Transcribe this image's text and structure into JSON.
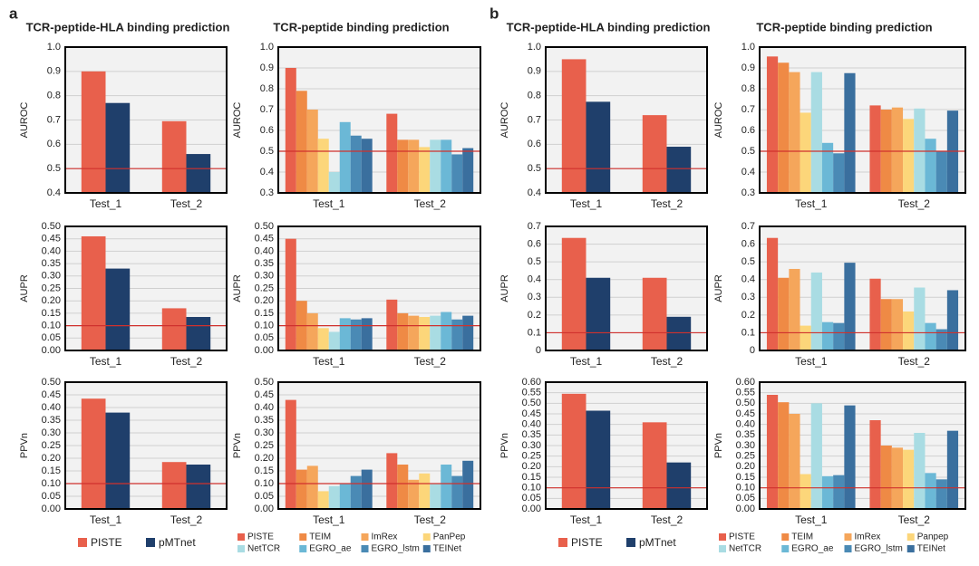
{
  "panel_labels": [
    "a",
    "b"
  ],
  "chart_data": [
    {
      "type": "bar",
      "title": "TCR-peptide-HLA binding prediction",
      "ylabel": "AUROC",
      "categories": [
        "Test_1",
        "Test_2"
      ],
      "series": [
        {
          "name": "PISTE",
          "color": "#e8604c",
          "values": [
            0.9,
            0.695
          ]
        },
        {
          "name": "pMTnet",
          "color": "#1f3f6b",
          "values": [
            0.77,
            0.56
          ]
        }
      ],
      "ylim": [
        0.4,
        1
      ],
      "yticks": [
        0.4,
        0.5,
        0.6,
        0.7,
        0.8,
        0.9,
        {
          "value": 1,
          "label": "1.0"
        }
      ],
      "threshold": 0.5,
      "threshold_color": "#d0312d",
      "legend": false
    },
    {
      "type": "bar",
      "title": "TCR-peptide binding prediction",
      "ylabel": "AUROC",
      "categories": [
        "Test_1",
        "Test_2"
      ],
      "series": [
        {
          "name": "PISTE",
          "color": "#e8604c",
          "values": [
            0.9,
            0.68
          ]
        },
        {
          "name": "TEIM",
          "color": "#ef8a45",
          "values": [
            0.79,
            0.555
          ]
        },
        {
          "name": "ImRex",
          "color": "#f5a65b",
          "values": [
            0.7,
            0.555
          ]
        },
        {
          "name": "PanPep",
          "color": "#fcd67a",
          "values": [
            0.56,
            0.52
          ]
        },
        {
          "name": "NetTCR",
          "color": "#a9dce3",
          "values": [
            0.4,
            0.555
          ]
        },
        {
          "name": "EGRO_ae",
          "color": "#6bb8d6",
          "values": [
            0.64,
            0.555
          ]
        },
        {
          "name": "EGRO_lstm",
          "color": "#4a8ab5",
          "values": [
            0.575,
            0.485
          ]
        },
        {
          "name": "TEINet",
          "color": "#3a6f9e",
          "values": [
            0.56,
            0.515
          ]
        }
      ],
      "ylim": [
        0.3,
        1
      ],
      "yticks": [
        0.3,
        0.4,
        0.5,
        0.6,
        0.7,
        0.8,
        0.9,
        {
          "value": 1,
          "label": "1.0"
        }
      ],
      "threshold": 0.5,
      "threshold_color": "#d0312d",
      "legend": false
    },
    {
      "type": "bar",
      "title": "TCR-peptide-HLA binding prediction",
      "ylabel": "AUROC",
      "categories": [
        "Test_1",
        "Test_2"
      ],
      "series": [
        {
          "name": "PISTE",
          "color": "#e8604c",
          "values": [
            0.95,
            0.72
          ]
        },
        {
          "name": "pMTnet",
          "color": "#1f3f6b",
          "values": [
            0.775,
            0.59
          ]
        }
      ],
      "ylim": [
        0.4,
        1
      ],
      "yticks": [
        0.4,
        0.5,
        0.6,
        0.7,
        0.8,
        0.9,
        {
          "value": 1,
          "label": "1.0"
        }
      ],
      "threshold": 0.5,
      "threshold_color": "#d0312d",
      "legend": false
    },
    {
      "type": "bar",
      "title": "TCR-peptide binding prediction",
      "ylabel": "AUROC",
      "categories": [
        "Test_1",
        "Test_2"
      ],
      "series": [
        {
          "name": "PISTE",
          "color": "#e8604c",
          "values": [
            0.955,
            0.72
          ]
        },
        {
          "name": "TEIM",
          "color": "#ef8a45",
          "values": [
            0.925,
            0.7
          ]
        },
        {
          "name": "ImRex",
          "color": "#f5a65b",
          "values": [
            0.88,
            0.71
          ]
        },
        {
          "name": "Panpep",
          "color": "#fcd67a",
          "values": [
            0.685,
            0.655
          ]
        },
        {
          "name": "NetTCR",
          "color": "#a9dce3",
          "values": [
            0.88,
            0.705
          ]
        },
        {
          "name": "EGRO_ae",
          "color": "#6bb8d6",
          "values": [
            0.54,
            0.56
          ]
        },
        {
          "name": "EGRO_lstm",
          "color": "#4a8ab5",
          "values": [
            0.49,
            0.5
          ]
        },
        {
          "name": "TEINet",
          "color": "#3a6f9e",
          "values": [
            0.875,
            0.695
          ]
        }
      ],
      "ylim": [
        0.3,
        1
      ],
      "yticks": [
        0.3,
        0.4,
        0.5,
        0.6,
        0.7,
        0.8,
        0.9,
        {
          "value": 1,
          "label": "1.0"
        }
      ],
      "threshold": 0.5,
      "threshold_color": "#d0312d",
      "legend": false
    },
    {
      "type": "bar",
      "ylabel": "AUPR",
      "categories": [
        "Test_1",
        "Test_2"
      ],
      "series": [
        {
          "name": "PISTE",
          "color": "#e8604c",
          "values": [
            0.46,
            0.17
          ]
        },
        {
          "name": "pMTnet",
          "color": "#1f3f6b",
          "values": [
            0.33,
            0.135
          ]
        }
      ],
      "ylim": [
        0,
        0.5
      ],
      "yticks": [
        {
          "value": 0,
          "label": "0.00"
        },
        0.05,
        {
          "value": 0.1,
          "label": "0.10"
        },
        0.15,
        {
          "value": 0.2,
          "label": "0.20"
        },
        0.25,
        {
          "value": 0.3,
          "label": "0.30"
        },
        0.35,
        {
          "value": 0.4,
          "label": "0.40"
        },
        0.45,
        {
          "value": 0.5,
          "label": "0.50"
        }
      ],
      "threshold": 0.1,
      "threshold_color": "#d0312d",
      "legend": false
    },
    {
      "type": "bar",
      "ylabel": "AUPR",
      "categories": [
        "Test_1",
        "Test_2"
      ],
      "series": [
        {
          "name": "PISTE",
          "color": "#e8604c",
          "values": [
            0.45,
            0.205
          ]
        },
        {
          "name": "TEIM",
          "color": "#ef8a45",
          "values": [
            0.2,
            0.15
          ]
        },
        {
          "name": "ImRex",
          "color": "#f5a65b",
          "values": [
            0.15,
            0.14
          ]
        },
        {
          "name": "PanPep",
          "color": "#fcd67a",
          "values": [
            0.09,
            0.135
          ]
        },
        {
          "name": "NetTCR",
          "color": "#a9dce3",
          "values": [
            0.075,
            0.14
          ]
        },
        {
          "name": "EGRO_ae",
          "color": "#6bb8d6",
          "values": [
            0.13,
            0.155
          ]
        },
        {
          "name": "EGRO_lstm",
          "color": "#4a8ab5",
          "values": [
            0.125,
            0.125
          ]
        },
        {
          "name": "TEINet",
          "color": "#3a6f9e",
          "values": [
            0.13,
            0.14
          ]
        }
      ],
      "ylim": [
        0,
        0.5
      ],
      "yticks": [
        {
          "value": 0,
          "label": "0.00"
        },
        0.05,
        {
          "value": 0.1,
          "label": "0.10"
        },
        0.15,
        {
          "value": 0.2,
          "label": "0.20"
        },
        0.25,
        {
          "value": 0.3,
          "label": "0.30"
        },
        0.35,
        {
          "value": 0.4,
          "label": "0.40"
        },
        0.45,
        {
          "value": 0.5,
          "label": "0.50"
        }
      ],
      "threshold": 0.1,
      "threshold_color": "#d0312d",
      "legend": false
    },
    {
      "type": "bar",
      "ylabel": "AUPR",
      "categories": [
        "Test_1",
        "Test_2"
      ],
      "series": [
        {
          "name": "PISTE",
          "color": "#e8604c",
          "values": [
            0.635,
            0.41
          ]
        },
        {
          "name": "pMTnet",
          "color": "#1f3f6b",
          "values": [
            0.41,
            0.19
          ]
        }
      ],
      "ylim": [
        0,
        0.7
      ],
      "yticks": [
        {
          "value": 0,
          "label": "0"
        },
        0.1,
        0.2,
        0.3,
        0.4,
        0.5,
        0.6,
        0.7
      ],
      "threshold": 0.1,
      "threshold_color": "#d0312d",
      "legend": false
    },
    {
      "type": "bar",
      "ylabel": "AUPR",
      "categories": [
        "Test_1",
        "Test_2"
      ],
      "series": [
        {
          "name": "PISTE",
          "color": "#e8604c",
          "values": [
            0.635,
            0.405
          ]
        },
        {
          "name": "TEIM",
          "color": "#ef8a45",
          "values": [
            0.41,
            0.29
          ]
        },
        {
          "name": "ImRex",
          "color": "#f5a65b",
          "values": [
            0.46,
            0.29
          ]
        },
        {
          "name": "Panpep",
          "color": "#fcd67a",
          "values": [
            0.14,
            0.22
          ]
        },
        {
          "name": "NetTCR",
          "color": "#a9dce3",
          "values": [
            0.44,
            0.355
          ]
        },
        {
          "name": "EGRO_ae",
          "color": "#6bb8d6",
          "values": [
            0.16,
            0.155
          ]
        },
        {
          "name": "EGRO_lstm",
          "color": "#4a8ab5",
          "values": [
            0.155,
            0.12
          ]
        },
        {
          "name": "TEINet",
          "color": "#3a6f9e",
          "values": [
            0.495,
            0.34
          ]
        }
      ],
      "ylim": [
        0,
        0.7
      ],
      "yticks": [
        {
          "value": 0,
          "label": "0"
        },
        0.1,
        0.2,
        0.3,
        0.4,
        0.5,
        0.6,
        0.7
      ],
      "threshold": 0.1,
      "threshold_color": "#d0312d",
      "legend": false
    },
    {
      "type": "bar",
      "ylabel": "PPVn",
      "categories": [
        "Test_1",
        "Test_2"
      ],
      "series": [
        {
          "name": "PISTE",
          "color": "#e8604c",
          "values": [
            0.435,
            0.185
          ]
        },
        {
          "name": "pMTnet",
          "color": "#1f3f6b",
          "values": [
            0.38,
            0.175
          ]
        }
      ],
      "ylim": [
        0,
        0.5
      ],
      "yticks": [
        {
          "value": 0,
          "label": "0.00"
        },
        0.05,
        {
          "value": 0.1,
          "label": "0.10"
        },
        0.15,
        {
          "value": 0.2,
          "label": "0.20"
        },
        0.25,
        {
          "value": 0.3,
          "label": "0.30"
        },
        0.35,
        {
          "value": 0.4,
          "label": "0.40"
        },
        0.45,
        {
          "value": 0.5,
          "label": "0.50"
        }
      ],
      "threshold": 0.1,
      "threshold_color": "#d0312d",
      "legend": true
    },
    {
      "type": "bar",
      "ylabel": "PPVn",
      "categories": [
        "Test_1",
        "Test_2"
      ],
      "series": [
        {
          "name": "PISTE",
          "color": "#e8604c",
          "values": [
            0.43,
            0.22
          ]
        },
        {
          "name": "TEIM",
          "color": "#ef8a45",
          "values": [
            0.155,
            0.175
          ]
        },
        {
          "name": "ImRex",
          "color": "#f5a65b",
          "values": [
            0.17,
            0.115
          ]
        },
        {
          "name": "PanPep",
          "color": "#fcd67a",
          "values": [
            0.07,
            0.14
          ]
        },
        {
          "name": "NetTCR",
          "color": "#a9dce3",
          "values": [
            0.09,
            0.1
          ]
        },
        {
          "name": "EGRO_ae",
          "color": "#6bb8d6",
          "values": [
            0.1,
            0.175
          ]
        },
        {
          "name": "EGRO_lstm",
          "color": "#4a8ab5",
          "values": [
            0.13,
            0.13
          ]
        },
        {
          "name": "TEINet",
          "color": "#3a6f9e",
          "values": [
            0.155,
            0.19
          ]
        }
      ],
      "ylim": [
        0,
        0.5
      ],
      "yticks": [
        {
          "value": 0,
          "label": "0.00"
        },
        0.05,
        {
          "value": 0.1,
          "label": "0.10"
        },
        0.15,
        {
          "value": 0.2,
          "label": "0.20"
        },
        0.25,
        {
          "value": 0.3,
          "label": "0.30"
        },
        0.35,
        {
          "value": 0.4,
          "label": "0.40"
        },
        0.45,
        {
          "value": 0.5,
          "label": "0.50"
        }
      ],
      "threshold": 0.1,
      "threshold_color": "#d0312d",
      "legend": true
    },
    {
      "type": "bar",
      "ylabel": "PPVn",
      "categories": [
        "Test_1",
        "Test_2"
      ],
      "series": [
        {
          "name": "PISTE",
          "color": "#e8604c",
          "values": [
            0.545,
            0.41
          ]
        },
        {
          "name": "pMTnet",
          "color": "#1f3f6b",
          "values": [
            0.465,
            0.22
          ]
        }
      ],
      "ylim": [
        0,
        0.6
      ],
      "yticks": [
        {
          "value": 0,
          "label": "0.00"
        },
        0.05,
        {
          "value": 0.1,
          "label": "0.10"
        },
        0.15,
        {
          "value": 0.2,
          "label": "0.20"
        },
        0.25,
        {
          "value": 0.3,
          "label": "0.30"
        },
        0.35,
        {
          "value": 0.4,
          "label": "0.40"
        },
        0.45,
        {
          "value": 0.5,
          "label": "0.50"
        },
        0.55,
        {
          "value": 0.6,
          "label": "0.60"
        }
      ],
      "threshold": 0.1,
      "threshold_color": "#d0312d",
      "legend": true
    },
    {
      "type": "bar",
      "ylabel": "PPVn",
      "categories": [
        "Test_1",
        "Test_2"
      ],
      "series": [
        {
          "name": "PISTE",
          "color": "#e8604c",
          "values": [
            0.54,
            0.42
          ]
        },
        {
          "name": "TEIM",
          "color": "#ef8a45",
          "values": [
            0.505,
            0.3
          ]
        },
        {
          "name": "ImRex",
          "color": "#f5a65b",
          "values": [
            0.45,
            0.29
          ]
        },
        {
          "name": "Panpep",
          "color": "#fcd67a",
          "values": [
            0.165,
            0.28
          ]
        },
        {
          "name": "NetTCR",
          "color": "#a9dce3",
          "values": [
            0.5,
            0.36
          ]
        },
        {
          "name": "EGRO_ae",
          "color": "#6bb8d6",
          "values": [
            0.155,
            0.17
          ]
        },
        {
          "name": "EGRO_lstm",
          "color": "#4a8ab5",
          "values": [
            0.16,
            0.14
          ]
        },
        {
          "name": "TEINet",
          "color": "#3a6f9e",
          "values": [
            0.49,
            0.37
          ]
        }
      ],
      "ylim": [
        0,
        0.6
      ],
      "yticks": [
        {
          "value": 0,
          "label": "0.00"
        },
        0.05,
        {
          "value": 0.1,
          "label": "0.10"
        },
        0.15,
        {
          "value": 0.2,
          "label": "0.20"
        },
        0.25,
        {
          "value": 0.3,
          "label": "0.30"
        },
        0.35,
        {
          "value": 0.4,
          "label": "0.40"
        },
        0.45,
        {
          "value": 0.5,
          "label": "0.50"
        },
        0.55,
        {
          "value": 0.6,
          "label": "0.60"
        }
      ],
      "threshold": 0.1,
      "threshold_color": "#d0312d",
      "legend": true
    }
  ]
}
